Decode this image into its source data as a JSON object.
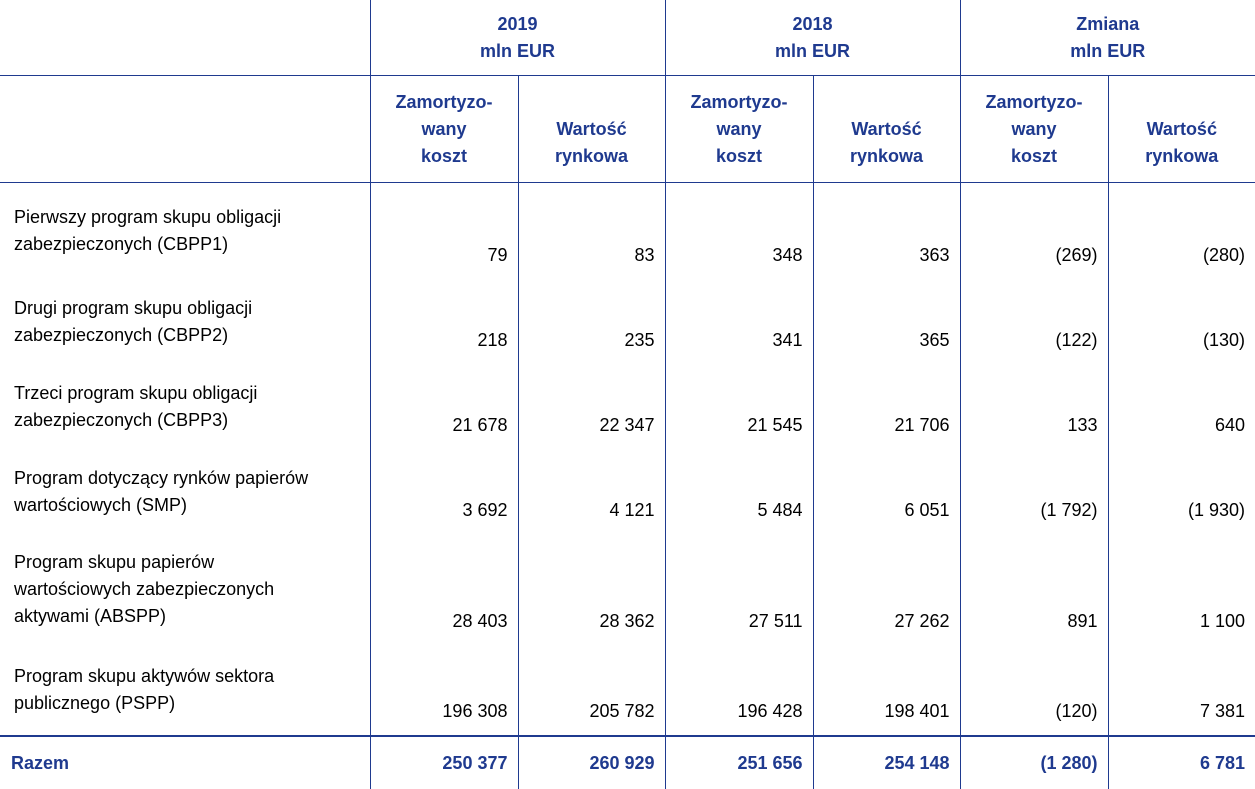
{
  "header": {
    "groups": [
      {
        "year": "2019",
        "unit": "mln EUR"
      },
      {
        "year": "2018",
        "unit": "mln EUR"
      },
      {
        "year": "Zmiana",
        "unit": "mln EUR"
      }
    ],
    "sub": {
      "amortized_line1": "Zamortyzo-",
      "amortized_line2": "wany",
      "amortized_line3": "koszt",
      "market_line1": "Wartość",
      "market_line2": "rynkowa"
    }
  },
  "rows": [
    {
      "label_line1": "Pierwszy program skupu obligacji",
      "label_line2": "zabezpieczonych (CBPP1)",
      "values": [
        "79",
        "83",
        "348",
        "363",
        "(269)",
        "(280)"
      ]
    },
    {
      "label_line1": "Drugi program skupu obligacji",
      "label_line2": "zabezpieczonych (CBPP2)",
      "values": [
        "218",
        "235",
        "341",
        "365",
        "(122)",
        "(130)"
      ]
    },
    {
      "label_line1": "Trzeci program skupu obligacji",
      "label_line2": "zabezpieczonych (CBPP3)",
      "values": [
        "21 678",
        "22 347",
        "21 545",
        "21 706",
        "133",
        "640"
      ]
    },
    {
      "label_line1": "Program dotyczący rynków papierów",
      "label_line2": "wartościowych (SMP)",
      "values": [
        "3 692",
        "4 121",
        "5 484",
        "6 051",
        "(1 792)",
        "(1 930)"
      ]
    },
    {
      "label_line1": "Program skupu papierów",
      "label_line2": "wartościowych zabezpieczonych",
      "label_line3": "aktywami (ABSPP)",
      "values": [
        "28 403",
        "28 362",
        "27 511",
        "27 262",
        "891",
        "1 100"
      ]
    },
    {
      "label_line1": "Program skupu aktywów sektora",
      "label_line2": "publicznego (PSPP)",
      "values": [
        "196 308",
        "205 782",
        "196 428",
        "198 401",
        "(120)",
        "7 381"
      ]
    }
  ],
  "total": {
    "label": "Razem",
    "values": [
      "250 377",
      "260 929",
      "251 656",
      "254 148",
      "(1 280)",
      "6 781"
    ]
  }
}
